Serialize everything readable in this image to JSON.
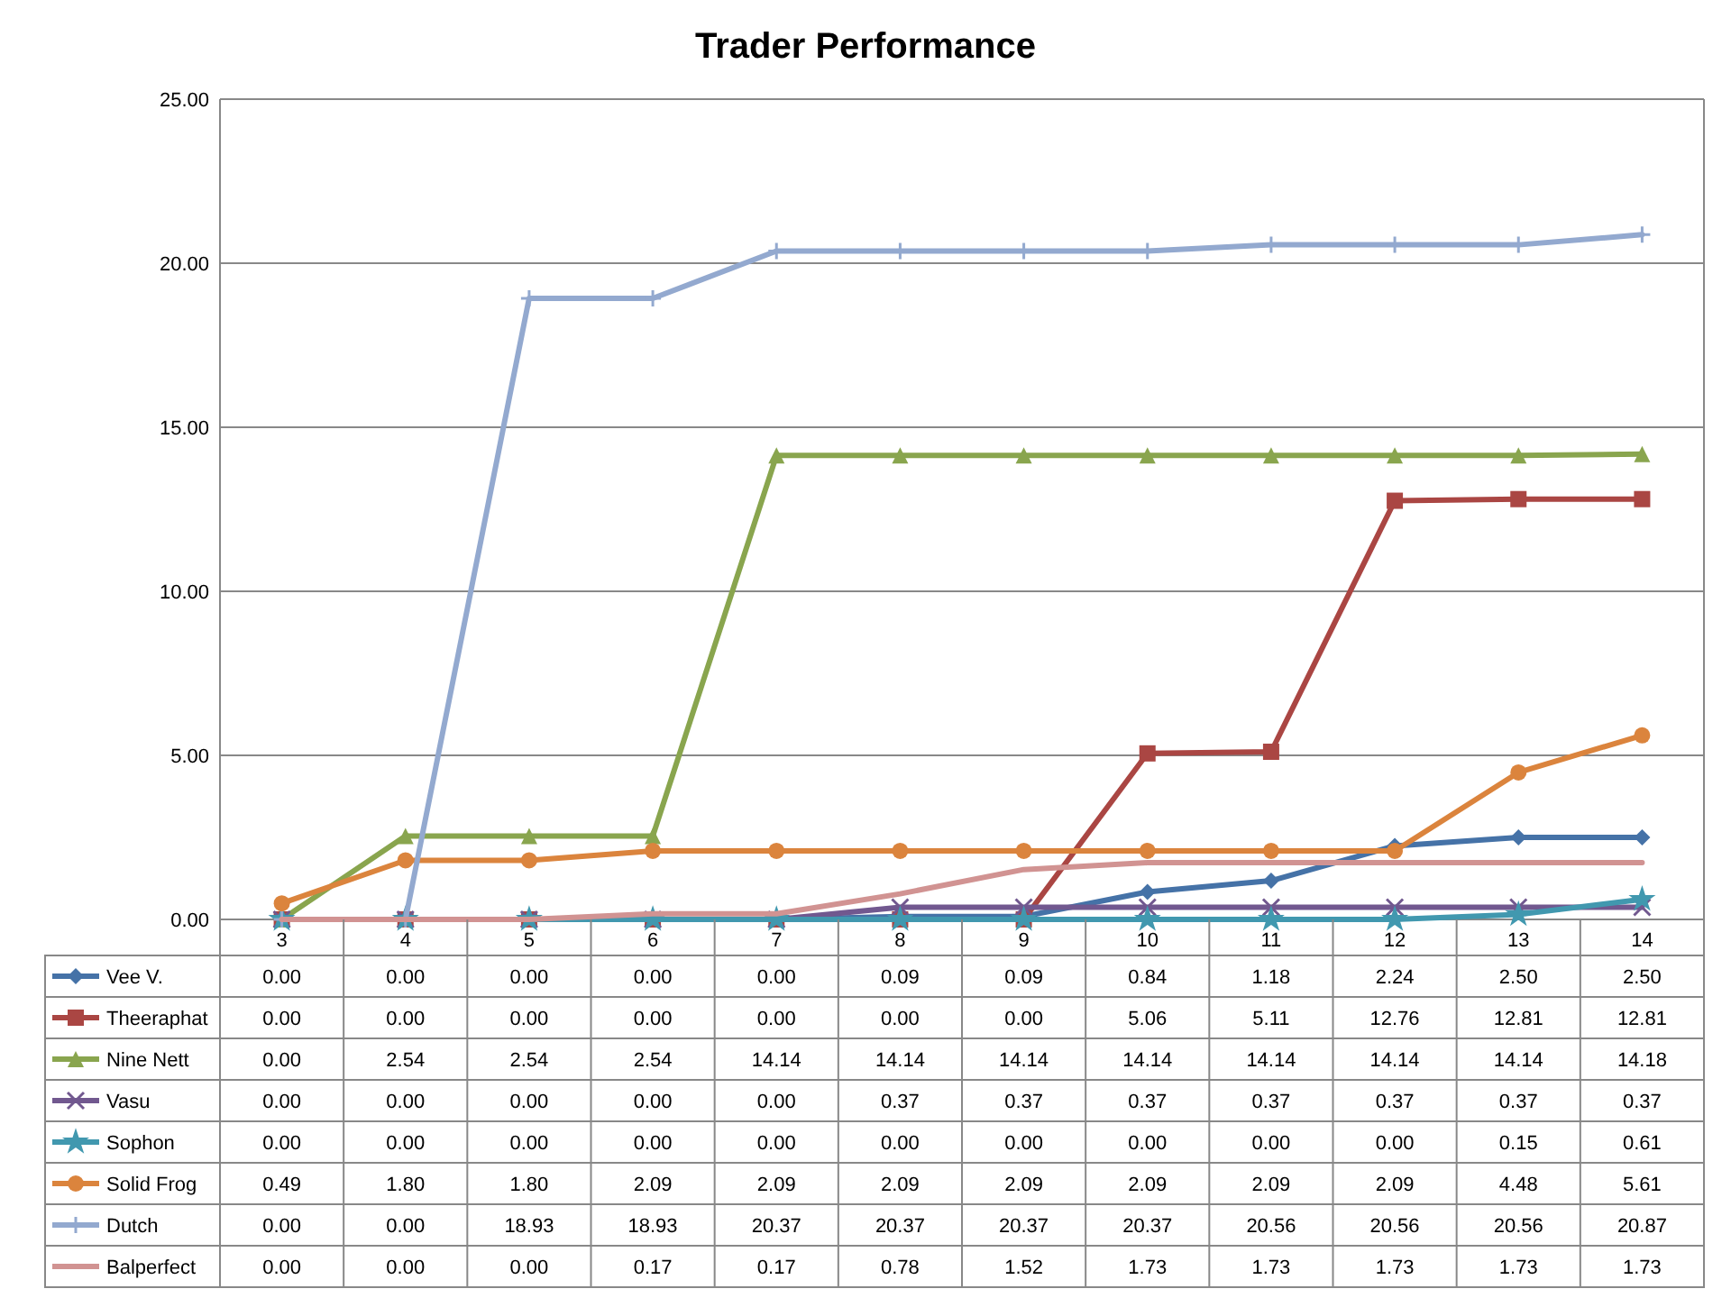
{
  "chart_data": {
    "type": "line",
    "title": "Trader Performance",
    "categories": [
      "3",
      "4",
      "5",
      "6",
      "7",
      "8",
      "9",
      "10",
      "11",
      "12",
      "13",
      "14"
    ],
    "ylim": [
      0,
      25
    ],
    "yticks": [
      {
        "value": 0,
        "label": "0.00"
      },
      {
        "value": 5,
        "label": "5.00"
      },
      {
        "value": 10,
        "label": "10.00"
      },
      {
        "value": 15,
        "label": "15.00"
      },
      {
        "value": 20,
        "label": "20.00"
      },
      {
        "value": 25,
        "label": "25.00"
      }
    ],
    "grid": "y",
    "legend": "bottom",
    "series": [
      {
        "name": "Vee V.",
        "color": "#4572a7",
        "marker": "diamond",
        "values": [
          0,
          0,
          0,
          0,
          0,
          0.09,
          0.09,
          0.84,
          1.18,
          2.24,
          2.5,
          2.5
        ],
        "value_labels": [
          "0.00",
          "0.00",
          "0.00",
          "0.00",
          "0.00",
          "0.09",
          "0.09",
          "0.84",
          "1.18",
          "2.24",
          "2.50",
          "2.50"
        ]
      },
      {
        "name": "Theeraphat",
        "color": "#aa4643",
        "marker": "square",
        "values": [
          0,
          0,
          0,
          0,
          0,
          0,
          0,
          5.06,
          5.11,
          12.76,
          12.81,
          12.81
        ],
        "value_labels": [
          "0.00",
          "0.00",
          "0.00",
          "0.00",
          "0.00",
          "0.00",
          "0.00",
          "5.06",
          "5.11",
          "12.76",
          "12.81",
          "12.81"
        ]
      },
      {
        "name": "Nine Nett",
        "color": "#89a54e",
        "marker": "triangle",
        "values": [
          0,
          2.54,
          2.54,
          2.54,
          14.14,
          14.14,
          14.14,
          14.14,
          14.14,
          14.14,
          14.14,
          14.18
        ],
        "value_labels": [
          "0.00",
          "2.54",
          "2.54",
          "2.54",
          "14.14",
          "14.14",
          "14.14",
          "14.14",
          "14.14",
          "14.14",
          "14.14",
          "14.18"
        ]
      },
      {
        "name": "Vasu",
        "color": "#71588f",
        "marker": "cross",
        "values": [
          0,
          0,
          0,
          0,
          0,
          0.37,
          0.37,
          0.37,
          0.37,
          0.37,
          0.37,
          0.37
        ],
        "value_labels": [
          "0.00",
          "0.00",
          "0.00",
          "0.00",
          "0.00",
          "0.37",
          "0.37",
          "0.37",
          "0.37",
          "0.37",
          "0.37",
          "0.37"
        ]
      },
      {
        "name": "Sophon",
        "color": "#4198af",
        "marker": "star",
        "values": [
          0,
          0,
          0,
          0,
          0,
          0,
          0,
          0,
          0,
          0,
          0.15,
          0.61
        ],
        "value_labels": [
          "0.00",
          "0.00",
          "0.00",
          "0.00",
          "0.00",
          "0.00",
          "0.00",
          "0.00",
          "0.00",
          "0.00",
          "0.15",
          "0.61"
        ]
      },
      {
        "name": "Solid Frog",
        "color": "#db843d",
        "marker": "circle",
        "values": [
          0.49,
          1.8,
          1.8,
          2.09,
          2.09,
          2.09,
          2.09,
          2.09,
          2.09,
          2.09,
          4.48,
          5.61
        ],
        "value_labels": [
          "0.49",
          "1.80",
          "1.80",
          "2.09",
          "2.09",
          "2.09",
          "2.09",
          "2.09",
          "2.09",
          "2.09",
          "4.48",
          "5.61"
        ]
      },
      {
        "name": "Dutch",
        "color": "#93a9cf",
        "marker": "plus",
        "values": [
          0,
          0,
          18.93,
          18.93,
          20.37,
          20.37,
          20.37,
          20.37,
          20.56,
          20.56,
          20.56,
          20.87
        ],
        "value_labels": [
          "0.00",
          "0.00",
          "18.93",
          "18.93",
          "20.37",
          "20.37",
          "20.37",
          "20.37",
          "20.56",
          "20.56",
          "20.56",
          "20.87"
        ]
      },
      {
        "name": "Balperfect",
        "color": "#d19392",
        "marker": "none",
        "values": [
          0,
          0,
          0,
          0.17,
          0.17,
          0.78,
          1.52,
          1.73,
          1.73,
          1.73,
          1.73,
          1.73
        ],
        "value_labels": [
          "0.00",
          "0.00",
          "0.00",
          "0.17",
          "0.17",
          "0.78",
          "1.52",
          "1.73",
          "1.73",
          "1.73",
          "1.73",
          "1.73"
        ]
      }
    ]
  }
}
